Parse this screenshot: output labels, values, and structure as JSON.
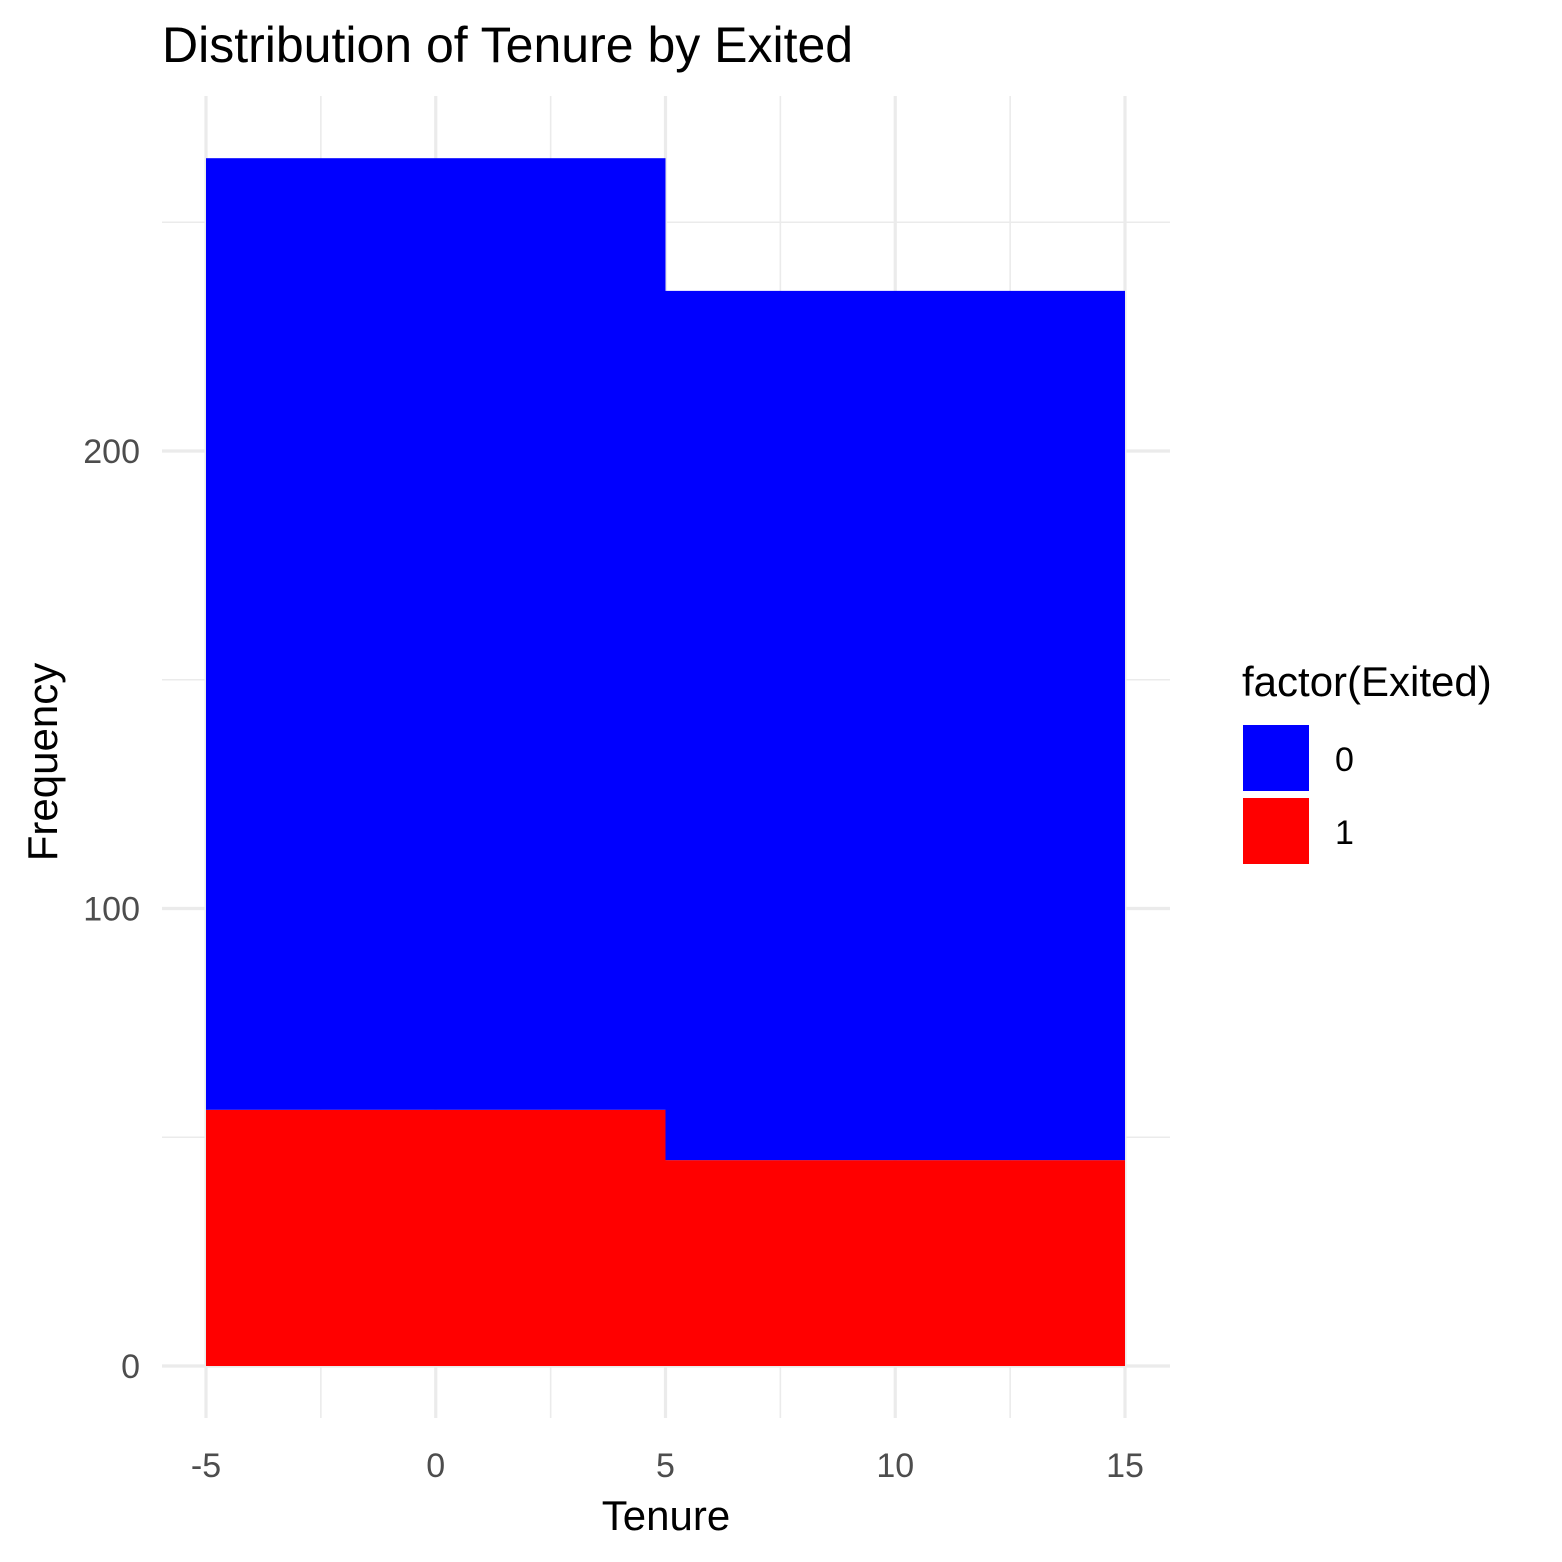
{
  "chart_data": {
    "type": "bar",
    "variant": "stacked-histogram",
    "title": "Distribution of Tenure by Exited",
    "xlabel": "Tenure",
    "ylabel": "Frequency",
    "xlim": [
      -5,
      15
    ],
    "ylim": [
      0,
      264
    ],
    "x_ticks": [
      -5,
      0,
      5,
      10,
      15
    ],
    "x_tick_labels": [
      "-5",
      "0",
      "5",
      "10",
      "15"
    ],
    "y_ticks": [
      0,
      100,
      200
    ],
    "y_tick_labels": [
      "0",
      "100",
      "200"
    ],
    "grid": true,
    "bins": [
      [
        -5,
        5
      ],
      [
        5,
        15
      ]
    ],
    "series": [
      {
        "name": "0",
        "color": "#0000FF",
        "values": [
          208,
          190
        ]
      },
      {
        "name": "1",
        "color": "#FF0000",
        "values": [
          56,
          45
        ]
      }
    ],
    "legend": {
      "title": "factor(Exited)",
      "position": "right",
      "entries": [
        "0",
        "1"
      ]
    }
  }
}
